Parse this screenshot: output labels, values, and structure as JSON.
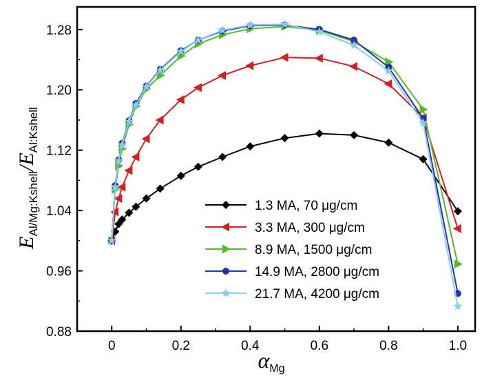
{
  "chart_data": {
    "type": "line",
    "title": "",
    "xlabel": {
      "main": "α",
      "sub": "Mg"
    },
    "ylabel": {
      "num_main": "E",
      "num_sub": "Al/Mg:Kshell",
      "den_main": "E",
      "den_sub": "Al:Kshell"
    },
    "xlim": [
      -0.1,
      1.05
    ],
    "ylim": [
      0.88,
      1.31
    ],
    "xticks": [
      0,
      0.2,
      0.4,
      0.6,
      0.8,
      1.0
    ],
    "xtick_labels": [
      "0",
      "0.2",
      "0.4",
      "0.6",
      "0.8",
      "1.0"
    ],
    "yticks": [
      0.88,
      0.96,
      1.04,
      1.12,
      1.2,
      1.28
    ],
    "ytick_labels": [
      "0.88",
      "0.96",
      "1.04",
      "1.12",
      "1.20",
      "1.28"
    ],
    "grid": false,
    "legend_position": "bottom-right",
    "series": [
      {
        "name": "1.3 MA, 70 μg/cm",
        "color": "#000000",
        "marker": "diamond",
        "x": [
          0,
          0.01,
          0.02,
          0.03,
          0.05,
          0.07,
          0.1,
          0.14,
          0.2,
          0.25,
          0.32,
          0.4,
          0.5,
          0.6,
          0.7,
          0.8,
          0.9,
          1.0
        ],
        "y": [
          1.0,
          1.012,
          1.022,
          1.028,
          1.037,
          1.045,
          1.056,
          1.069,
          1.086,
          1.098,
          1.111,
          1.125,
          1.136,
          1.142,
          1.14,
          1.13,
          1.108,
          1.039
        ]
      },
      {
        "name": "3.3 MA, 300 μg/cm",
        "color": "#d42020",
        "marker": "triangle-left",
        "x": [
          0,
          0.01,
          0.02,
          0.03,
          0.05,
          0.07,
          0.1,
          0.14,
          0.2,
          0.25,
          0.32,
          0.4,
          0.5,
          0.6,
          0.7,
          0.8,
          0.9,
          1.0
        ],
        "y": [
          1.0,
          1.038,
          1.056,
          1.071,
          1.093,
          1.111,
          1.135,
          1.16,
          1.187,
          1.203,
          1.219,
          1.232,
          1.243,
          1.242,
          1.231,
          1.208,
          1.163,
          1.016
        ]
      },
      {
        "name": "8.9 MA, 1500 μg/cm",
        "color": "#55bb22",
        "marker": "triangle-right",
        "x": [
          0,
          0.01,
          0.02,
          0.03,
          0.05,
          0.07,
          0.1,
          0.14,
          0.2,
          0.25,
          0.32,
          0.4,
          0.5,
          0.6,
          0.7,
          0.8,
          0.9,
          1.0
        ],
        "y": [
          1.0,
          1.068,
          1.099,
          1.122,
          1.154,
          1.178,
          1.201,
          1.219,
          1.245,
          1.261,
          1.273,
          1.281,
          1.284,
          1.279,
          1.264,
          1.237,
          1.174,
          0.969
        ]
      },
      {
        "name": "14.9 MA, 2800 μg/cm",
        "color": "#2233aa",
        "marker": "circle",
        "x": [
          0,
          0.01,
          0.02,
          0.03,
          0.05,
          0.07,
          0.1,
          0.14,
          0.2,
          0.25,
          0.32,
          0.4,
          0.5,
          0.6,
          0.7,
          0.8,
          0.9,
          1.0
        ],
        "y": [
          1.0,
          1.073,
          1.107,
          1.129,
          1.159,
          1.182,
          1.205,
          1.227,
          1.252,
          1.266,
          1.278,
          1.285,
          1.286,
          1.28,
          1.266,
          1.23,
          1.162,
          0.93
        ]
      },
      {
        "name": "21.7 MA, 4200 μg/cm",
        "color": "#88ccee",
        "marker": "star",
        "x": [
          0,
          0.01,
          0.02,
          0.03,
          0.05,
          0.07,
          0.1,
          0.14,
          0.2,
          0.25,
          0.32,
          0.4,
          0.5,
          0.6,
          0.7,
          0.8,
          0.9,
          1.0
        ],
        "y": [
          1.0,
          1.071,
          1.106,
          1.127,
          1.158,
          1.18,
          1.204,
          1.226,
          1.251,
          1.266,
          1.279,
          1.286,
          1.287,
          1.277,
          1.259,
          1.225,
          1.156,
          0.913
        ]
      }
    ]
  }
}
